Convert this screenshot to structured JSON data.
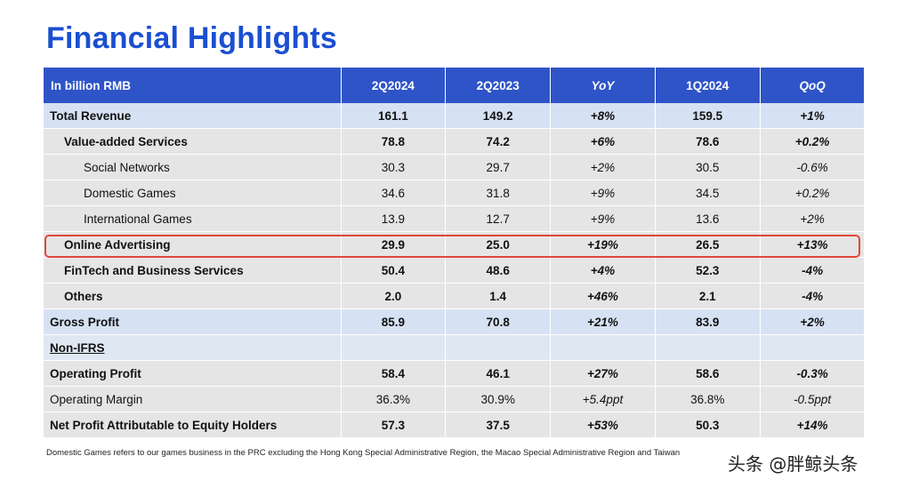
{
  "title": "Financial Highlights",
  "table": {
    "headers": [
      "In billion RMB",
      "2Q2024",
      "2Q2023",
      "YoY",
      "1Q2024",
      "QoQ"
    ],
    "rows": [
      {
        "label": "Total Revenue",
        "values": [
          "161.1",
          "149.2",
          "+8%",
          "159.5",
          "+1%"
        ]
      },
      {
        "label": "Value-added Services",
        "values": [
          "78.8",
          "74.2",
          "+6%",
          "78.6",
          "+0.2%"
        ]
      },
      {
        "label": "Social Networks",
        "values": [
          "30.3",
          "29.7",
          "+2%",
          "30.5",
          "-0.6%"
        ]
      },
      {
        "label": "Domestic Games",
        "values": [
          "34.6",
          "31.8",
          "+9%",
          "34.5",
          "+0.2%"
        ]
      },
      {
        "label": "International Games",
        "values": [
          "13.9",
          "12.7",
          "+9%",
          "13.6",
          "+2%"
        ]
      },
      {
        "label": "Online Advertising",
        "values": [
          "29.9",
          "25.0",
          "+19%",
          "26.5",
          "+13%"
        ]
      },
      {
        "label": "FinTech and Business Services",
        "values": [
          "50.4",
          "48.6",
          "+4%",
          "52.3",
          "-4%"
        ]
      },
      {
        "label": "Others",
        "values": [
          "2.0",
          "1.4",
          "+46%",
          "2.1",
          "-4%"
        ]
      },
      {
        "label": "Gross Profit",
        "values": [
          "85.9",
          "70.8",
          "+21%",
          "83.9",
          "+2%"
        ]
      },
      {
        "label": "Non-IFRS"
      },
      {
        "label": "Operating Profit",
        "values": [
          "58.4",
          "46.1",
          "+27%",
          "58.6",
          "-0.3%"
        ]
      },
      {
        "label": "Operating Margin",
        "values": [
          "36.3%",
          "30.9%",
          "+5.4ppt",
          "36.8%",
          "-0.5ppt"
        ]
      },
      {
        "label": "Net Profit Attributable to Equity Holders",
        "values": [
          "57.3",
          "37.5",
          "+53%",
          "50.3",
          "+14%"
        ]
      }
    ]
  },
  "footnote": "Domestic Games refers to our games business in the PRC excluding the Hong Kong Special Administrative Region, the Macao Special Administrative Region and Taiwan",
  "watermark": "头条 @胖鲸头条",
  "colors": {
    "title": "#1a4fd1",
    "header_bg": "#2e54c8",
    "highlight_border": "#e0473a"
  }
}
